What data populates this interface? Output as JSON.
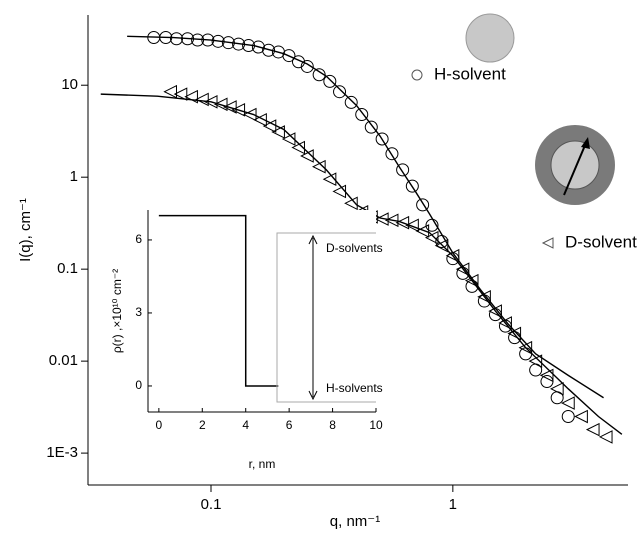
{
  "chart_data": [
    {
      "type": "scatter",
      "xlabel": "q, nm⁻¹",
      "ylabel": "I(q), cm⁻¹",
      "xscale": "log",
      "yscale": "log",
      "xlim": [
        0.031,
        5.3
      ],
      "ylim": [
        0.00045,
        58
      ],
      "xticks": [
        0.1,
        1
      ],
      "yticks": [
        {
          "value": 0.001,
          "label": "1E-3"
        },
        0.01,
        0.1,
        1,
        10
      ],
      "series": [
        {
          "name": "H-solvent",
          "marker": "circle",
          "color": "#000000",
          "x": [
            0.058,
            0.065,
            0.072,
            0.08,
            0.088,
            0.097,
            0.107,
            0.118,
            0.13,
            0.143,
            0.157,
            0.173,
            0.19,
            0.21,
            0.23,
            0.25,
            0.28,
            0.31,
            0.34,
            0.38,
            0.42,
            0.46,
            0.51,
            0.56,
            0.62,
            0.68,
            0.75,
            0.82,
            0.9,
            1.0,
            1.1,
            1.2,
            1.35,
            1.5,
            1.65,
            1.8,
            2.0,
            2.2,
            2.45,
            2.7,
            3.0
          ],
          "values": [
            33,
            33,
            32,
            32,
            31,
            31,
            30,
            29,
            28,
            27,
            26,
            24,
            23,
            21,
            18,
            16,
            13,
            11,
            8.5,
            6.5,
            4.8,
            3.5,
            2.6,
            1.8,
            1.2,
            0.8,
            0.5,
            0.3,
            0.2,
            0.13,
            0.09,
            0.065,
            0.045,
            0.032,
            0.024,
            0.018,
            0.012,
            0.008,
            0.006,
            0.004,
            0.0025
          ]
        },
        {
          "name": "D-solvent",
          "marker": "triangle",
          "color": "#000000",
          "x": [
            0.068,
            0.075,
            0.083,
            0.092,
            0.1,
            0.11,
            0.12,
            0.13,
            0.145,
            0.16,
            0.175,
            0.19,
            0.21,
            0.23,
            0.25,
            0.28,
            0.31,
            0.34,
            0.38,
            0.42,
            0.46,
            0.51,
            0.56,
            0.62,
            0.68,
            0.75,
            0.82,
            0.9,
            1.0,
            1.1,
            1.2,
            1.35,
            1.5,
            1.65,
            1.8,
            2.0,
            2.2,
            2.45,
            2.7,
            3.0,
            3.4,
            3.8,
            4.3
          ],
          "values": [
            8.5,
            8,
            7.5,
            7,
            6.6,
            6.2,
            5.8,
            5.4,
            4.8,
            4.2,
            3.6,
            3.1,
            2.6,
            2.1,
            1.7,
            1.3,
            0.95,
            0.7,
            0.52,
            0.42,
            0.37,
            0.35,
            0.34,
            0.32,
            0.3,
            0.26,
            0.22,
            0.18,
            0.14,
            0.1,
            0.075,
            0.05,
            0.035,
            0.026,
            0.02,
            0.014,
            0.01,
            0.007,
            0.005,
            0.0035,
            0.0025,
            0.0018,
            0.0015
          ]
        },
        {
          "marker": "line",
          "color": "#000000",
          "x": [
            0.045,
            0.07,
            0.1,
            0.15,
            0.2,
            0.25,
            0.3,
            0.4,
            0.5,
            0.6,
            0.7,
            0.8,
            1.0,
            1.3,
            1.7,
            2.2,
            3,
            4.2
          ],
          "values": [
            34,
            33,
            31,
            27,
            22,
            17,
            12.5,
            6,
            2.8,
            1.3,
            0.7,
            0.4,
            0.15,
            0.06,
            0.025,
            0.012,
            0.007,
            0.004
          ]
        },
        {
          "marker": "line",
          "color": "#000000",
          "x": [
            0.035,
            0.06,
            0.1,
            0.15,
            0.2,
            0.3,
            0.4,
            0.5,
            0.6,
            0.8,
            1.0,
            1.5,
            2,
            3,
            4,
            5
          ],
          "values": [
            8,
            7.6,
            6.6,
            4.8,
            3.3,
            1.2,
            0.5,
            0.36,
            0.33,
            0.25,
            0.14,
            0.035,
            0.014,
            0.005,
            0.0025,
            0.0016
          ]
        }
      ]
    },
    {
      "type": "line",
      "xlabel": "r, nm",
      "ylabel": "ρ(r) ,×10¹⁰ cm⁻²",
      "xlim": [
        -0.5,
        10
      ],
      "ylim": [
        -1.07,
        7.23
      ],
      "xticks": [
        0,
        2,
        4,
        6,
        8,
        10
      ],
      "yticks": [
        0,
        3,
        6
      ],
      "annotations": [
        "D-solvents",
        "H-solvents"
      ],
      "series": [
        {
          "color": "#000000",
          "x": [
            0,
            4,
            4,
            5.5
          ],
          "values": [
            7,
            7,
            0,
            0
          ]
        }
      ]
    }
  ]
}
